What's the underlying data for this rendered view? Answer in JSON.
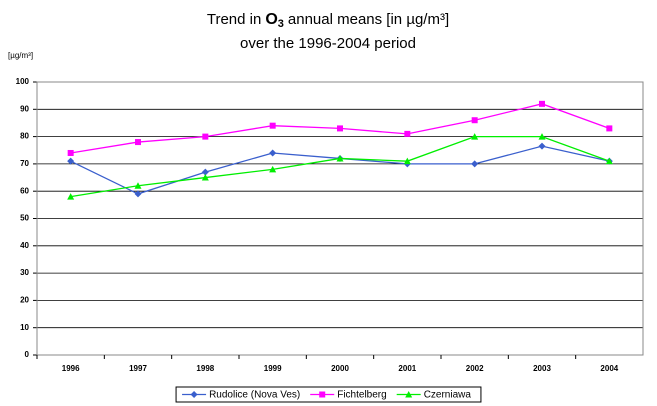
{
  "chart_data": {
    "type": "line",
    "title_parts": [
      "Trend in",
      "O",
      "3",
      "annual means [in µg/m³]"
    ],
    "subtitle": "over the 1996-2004 period",
    "y_label": "[µg/m³]",
    "categories": [
      "1996",
      "1997",
      "1998",
      "1999",
      "2000",
      "2001",
      "2002",
      "2003",
      "2004"
    ],
    "series": [
      {
        "name": "Rudolice (Nova Ves)",
        "color": "#3a5fcd",
        "marker": "diamond",
        "values": [
          71,
          59,
          67,
          74,
          72,
          70,
          70,
          76.5,
          71
        ]
      },
      {
        "name": "Fichtelberg",
        "color": "#ff00ff",
        "marker": "square",
        "values": [
          74,
          78,
          80,
          84,
          83,
          81,
          86,
          92,
          83
        ]
      },
      {
        "name": "Czerniawa",
        "color": "#00ee00",
        "marker": "triangle",
        "values": [
          58,
          62,
          65,
          68,
          72,
          71,
          80,
          80,
          71
        ]
      }
    ],
    "ylim": [
      0,
      100
    ],
    "yticks": [
      0,
      10,
      20,
      30,
      40,
      50,
      60,
      70,
      80,
      90,
      100
    ],
    "grid": true,
    "legend": "bottom"
  }
}
